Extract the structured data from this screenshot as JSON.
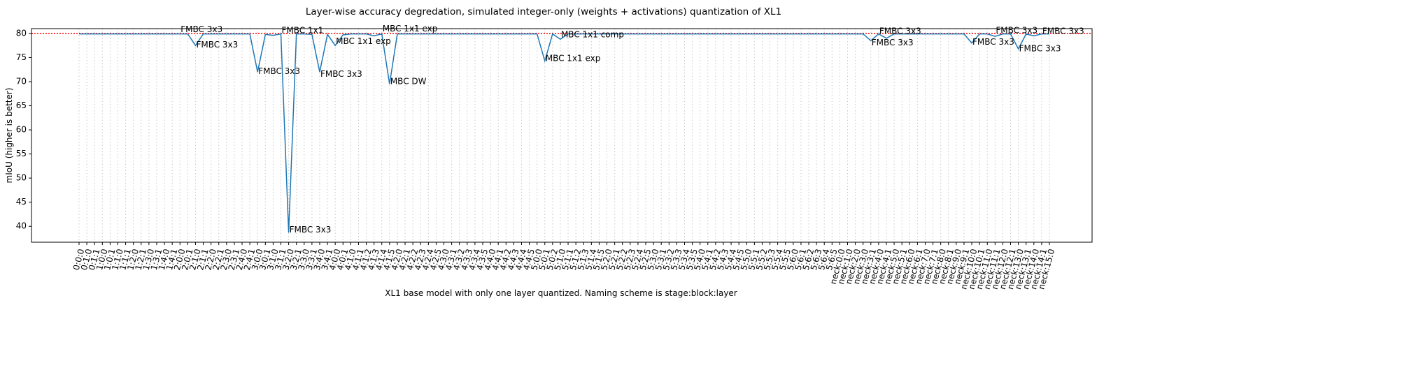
{
  "chart_data": {
    "type": "line",
    "title": "Layer-wise accuracy degredation, simulated integer-only (weights + activations) quantization of XL1",
    "x_label": "XL1 base model with only one layer quantized. Naming scheme is stage:block:layer",
    "y_label": "mIoU (higher is better)",
    "categories": [
      "0:0:0",
      "0:1:0",
      "0:1:1",
      "1:0:0",
      "1:0:1",
      "1:1:0",
      "1:1:1",
      "1:2:0",
      "1:2:1",
      "1:3:0",
      "1:3:1",
      "1:4:0",
      "1:4:1",
      "2:0:0",
      "2:0:1",
      "2:1:0",
      "2:1:1",
      "2:2:0",
      "2:2:1",
      "2:3:0",
      "2:3:1",
      "2:4:0",
      "2:4:1",
      "3:0:0",
      "3:0:1",
      "3:1:0",
      "3:1:1",
      "3:2:0",
      "3:2:1",
      "3:3:0",
      "3:3:1",
      "3:4:0",
      "3:4:1",
      "4:0:0",
      "4:0:1",
      "4:1:0",
      "4:1:1",
      "4:1:2",
      "4:1:3",
      "4:1:4",
      "4:1:5",
      "4:2:0",
      "4:2:1",
      "4:2:2",
      "4:2:3",
      "4:2:4",
      "4:2:5",
      "4:3:0",
      "4:3:1",
      "4:3:2",
      "4:3:3",
      "4:3:4",
      "4:3:5",
      "4:4:0",
      "4:4:1",
      "4:4:2",
      "4:4:3",
      "4:4:4",
      "4:4:5",
      "5:0:0",
      "5:0:1",
      "5:0:2",
      "5:1:0",
      "5:1:1",
      "5:1:2",
      "5:1:3",
      "5:1:4",
      "5:1:5",
      "5:2:0",
      "5:2:1",
      "5:2:2",
      "5:2:3",
      "5:2:4",
      "5:2:5",
      "5:3:0",
      "5:3:1",
      "5:3:2",
      "5:3:3",
      "5:3:4",
      "5:3:5",
      "5:4:0",
      "5:4:1",
      "5:4:2",
      "5:4:3",
      "5:4:4",
      "5:4:5",
      "5:5:0",
      "5:5:1",
      "5:5:2",
      "5:5:3",
      "5:5:4",
      "5:5:5",
      "5:6:0",
      "5:6:1",
      "5:6:2",
      "5:6:3",
      "5:6:4",
      "5:6:5",
      "neck:0:0",
      "neck:1:0",
      "neck:2:0",
      "neck:3:0",
      "neck:3:1",
      "neck:4:0",
      "neck:4:1",
      "neck:5:0",
      "neck:5:1",
      "neck:6:0",
      "neck:6:1",
      "neck:7:0",
      "neck:7:1",
      "neck:8:0",
      "neck:8:1",
      "neck:9:0",
      "neck:9:1",
      "neck:10:0",
      "neck:10:1",
      "neck:11:0",
      "neck:11:1",
      "neck:12:0",
      "neck:12:1",
      "neck:13:0",
      "neck:13:1",
      "neck:14:0",
      "neck:14:1",
      "neck:15:0"
    ],
    "series": [
      {
        "name": "mIoU",
        "color": "#1f77b4",
        "values": [
          79.9,
          79.9,
          79.9,
          79.9,
          79.9,
          79.9,
          79.9,
          79.9,
          79.9,
          79.9,
          79.9,
          79.9,
          79.9,
          79.9,
          79.9,
          77.5,
          79.9,
          79.9,
          79.9,
          79.9,
          79.9,
          79.9,
          79.9,
          72,
          79.8,
          79.6,
          79.9,
          38.7,
          79.9,
          79.9,
          79.8,
          72,
          79.8,
          77.5,
          79.7,
          79.9,
          79.9,
          79.9,
          79.5,
          79.9,
          69.5,
          79.9,
          79.9,
          79.9,
          79.9,
          79.9,
          79.9,
          79.9,
          79.9,
          79.9,
          79.9,
          79.9,
          79.9,
          79.9,
          79.9,
          79.9,
          79.9,
          79.9,
          79.9,
          79.9,
          74.3,
          79.9,
          78.8,
          79.9,
          79.9,
          79.9,
          79.9,
          79.9,
          79.9,
          79.9,
          79.9,
          79.9,
          79.9,
          79.9,
          79.9,
          79.9,
          79.9,
          79.9,
          79.9,
          79.9,
          79.9,
          79.9,
          79.9,
          79.9,
          79.9,
          79.9,
          79.9,
          79.9,
          79.9,
          79.9,
          79.9,
          79.9,
          79.9,
          79.9,
          79.9,
          79.9,
          79.9,
          79.9,
          79.9,
          79.9,
          79.9,
          79.9,
          78.5,
          79.9,
          79.0,
          79.9,
          79.9,
          79.9,
          79.9,
          79.9,
          79.9,
          79.9,
          79.9,
          79.9,
          79.9,
          78.0,
          79.9,
          79.9,
          79.4,
          79.9,
          79.9,
          76.8,
          79.9,
          79.5,
          79.9,
          79.9
        ]
      }
    ],
    "annotations": [
      {
        "text": "FMBC 3x3",
        "at": "2:0:0",
        "y": 80.8
      },
      {
        "text": "FMBC 3x3",
        "at": "2:1:0",
        "y": 77.6
      },
      {
        "text": "FMBC 3x3",
        "at": "3:0:0",
        "y": 72.1
      },
      {
        "text": "FMBC 1x1",
        "at": "3:1:1",
        "y": 80.6
      },
      {
        "text": "FMBC 3x3",
        "at": "3:2:0",
        "y": 39.2
      },
      {
        "text": "FMBC 3x3",
        "at": "3:4:0",
        "y": 71.5
      },
      {
        "text": "MBC 1x1 exp",
        "at": "4:0:0",
        "y": 78.3
      },
      {
        "text": "MBC 1x1 exp",
        "at": "4:1:4",
        "y": 80.9
      },
      {
        "text": "MBC DW",
        "at": "4:1:5",
        "y": 70
      },
      {
        "text": "MBC 1x1 exp",
        "at": "5:0:1",
        "y": 74.8
      },
      {
        "text": "MBC 1x1 comp",
        "at": "5:1:0",
        "y": 79.7
      },
      {
        "text": "FMBC 3x3",
        "at": "neck:3:1",
        "y": 78.0
      },
      {
        "text": "FMBC 3x3",
        "at": "neck:4:0",
        "y": 80.4
      },
      {
        "text": "FMBC 3x3",
        "at": "neck:10:0",
        "y": 78.2
      },
      {
        "text": "FMBC 3x3",
        "at": "neck:11:1",
        "y": 80.6
      },
      {
        "text": "FMBC 3x3",
        "at": "neck:13:0",
        "y": 76.8
      },
      {
        "text": "FMBC 3x3",
        "at": "neck:14:1",
        "y": 80.4
      }
    ],
    "reference_line": {
      "value": 80,
      "color": "red"
    },
    "ylim": [
      36.7,
      81
    ],
    "yticks": [
      40,
      45,
      50,
      55,
      60,
      65,
      70,
      75,
      80
    ],
    "grid": "x"
  }
}
